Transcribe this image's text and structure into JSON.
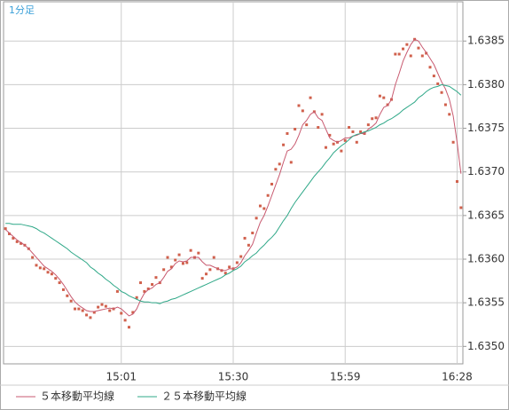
{
  "chart_data": {
    "type": "line",
    "title": "1分足",
    "categories": [
      null,
      null,
      null,
      null,
      null,
      null,
      null,
      null,
      null,
      null,
      null,
      null,
      null,
      null,
      null,
      null,
      null,
      null,
      null,
      null,
      null,
      null,
      null,
      null,
      null,
      null,
      null,
      null,
      null,
      null,
      "15:01",
      null,
      null,
      null,
      null,
      null,
      null,
      null,
      null,
      null,
      null,
      null,
      null,
      null,
      null,
      null,
      null,
      null,
      null,
      null,
      null,
      null,
      null,
      null,
      null,
      null,
      null,
      null,
      null,
      "15:30",
      null,
      null,
      null,
      null,
      null,
      null,
      null,
      null,
      null,
      null,
      null,
      null,
      null,
      null,
      null,
      null,
      null,
      null,
      null,
      null,
      null,
      null,
      null,
      null,
      null,
      null,
      null,
      null,
      "15:59",
      null,
      null,
      null,
      null,
      null,
      null,
      null,
      null,
      null,
      null,
      null,
      null,
      null,
      null,
      null,
      null,
      null,
      null,
      null,
      null,
      null,
      null,
      null,
      null,
      null,
      null,
      null,
      null,
      "16:28",
      null
    ],
    "series": [
      {
        "mode": "markers",
        "color": "#d0604c",
        "values": [
          1.63635,
          1.63629,
          1.63624,
          1.6362,
          1.63618,
          1.63616,
          1.63612,
          1.63602,
          1.63593,
          1.6359,
          1.63589,
          1.63585,
          1.63583,
          1.63578,
          1.63573,
          1.63565,
          1.63558,
          1.63552,
          1.63543,
          1.63543,
          1.63541,
          1.63536,
          1.63533,
          1.63539,
          1.63545,
          1.63548,
          1.63546,
          1.63541,
          1.63543,
          1.63563,
          1.63538,
          1.6353,
          1.63522,
          1.63539,
          1.63556,
          1.63573,
          1.63563,
          1.63566,
          1.63571,
          1.63579,
          1.63573,
          1.63588,
          1.63602,
          1.63591,
          1.63599,
          1.63605,
          1.63595,
          1.63596,
          1.6361,
          1.63602,
          1.63607,
          1.63578,
          1.63583,
          1.63588,
          1.63602,
          1.63589,
          1.63587,
          1.63584,
          1.63591,
          1.63589,
          1.63596,
          1.63603,
          1.63624,
          1.63616,
          1.6363,
          1.63647,
          1.63661,
          1.63658,
          1.63673,
          1.63686,
          1.63703,
          1.63709,
          1.63731,
          1.63744,
          1.63711,
          1.63749,
          1.63776,
          1.6377,
          1.63754,
          1.63785,
          1.63769,
          1.63751,
          1.63766,
          1.63728,
          1.63742,
          1.63732,
          1.63734,
          1.63724,
          1.63736,
          1.63751,
          1.63746,
          1.63734,
          1.63746,
          1.63744,
          1.63754,
          1.63761,
          1.63762,
          1.63787,
          1.63785,
          1.63777,
          1.63783,
          1.63835,
          1.63835,
          1.63841,
          1.63846,
          1.63833,
          1.63852,
          1.63842,
          1.63833,
          1.63836,
          1.6382,
          1.6381,
          1.63801,
          1.63791,
          1.63777,
          1.63766,
          1.63734,
          1.63689,
          1.63659
        ]
      },
      {
        "name": "５本移動平均線",
        "mode": "line",
        "color": "#c85a70",
        "values": [
          1.63634,
          1.6363,
          1.63626,
          1.63622,
          1.63619,
          1.63616,
          1.63612,
          1.63607,
          1.63602,
          1.63597,
          1.63592,
          1.63589,
          1.63586,
          1.63582,
          1.63577,
          1.63571,
          1.63564,
          1.63557,
          1.63551,
          1.63547,
          1.63544,
          1.63541,
          1.6354,
          1.6354,
          1.63541,
          1.63542,
          1.63543,
          1.63544,
          1.63543,
          1.63545,
          1.63543,
          1.63539,
          1.63535,
          1.63537,
          1.63543,
          1.63553,
          1.63561,
          1.63565,
          1.63567,
          1.63571,
          1.63573,
          1.63579,
          1.63586,
          1.63589,
          1.63595,
          1.63598,
          1.63597,
          1.63598,
          1.63602,
          1.63602,
          1.63602,
          1.63597,
          1.63593,
          1.63593,
          1.63591,
          1.63589,
          1.63587,
          1.63587,
          1.63589,
          1.63589,
          1.63591,
          1.63596,
          1.63604,
          1.6361,
          1.63617,
          1.6363,
          1.63642,
          1.6365,
          1.63661,
          1.63673,
          1.63685,
          1.63697,
          1.63711,
          1.63724,
          1.63726,
          1.63732,
          1.63742,
          1.63754,
          1.63759,
          1.63766,
          1.63769,
          1.63762,
          1.63759,
          1.63749,
          1.63739,
          1.63736,
          1.63734,
          1.63736,
          1.63739,
          1.63739,
          1.63741,
          1.63742,
          1.63744,
          1.63744,
          1.63749,
          1.63752,
          1.63756,
          1.63766,
          1.63774,
          1.63776,
          1.63783,
          1.638,
          1.63813,
          1.63827,
          1.63837,
          1.63846,
          1.63852,
          1.6385,
          1.63843,
          1.63837,
          1.6383,
          1.63823,
          1.63813,
          1.63803,
          1.63795,
          1.63783,
          1.63764,
          1.63734,
          1.63698
        ]
      },
      {
        "name": "２５本移動平均線",
        "mode": "line",
        "color": "#2fa888",
        "values": [
          1.63641,
          1.63641,
          1.6364,
          1.6364,
          1.6364,
          1.63639,
          1.63638,
          1.63637,
          1.63635,
          1.63632,
          1.6363,
          1.63627,
          1.63624,
          1.63621,
          1.63618,
          1.63615,
          1.63612,
          1.63608,
          1.63605,
          1.63602,
          1.63599,
          1.63596,
          1.63591,
          1.63588,
          1.63584,
          1.63581,
          1.63577,
          1.63574,
          1.6357,
          1.63567,
          1.63563,
          1.63561,
          1.63558,
          1.63556,
          1.63554,
          1.63552,
          1.63551,
          1.63551,
          1.6355,
          1.6355,
          1.63549,
          1.63551,
          1.63552,
          1.63554,
          1.63555,
          1.63557,
          1.63559,
          1.63561,
          1.63563,
          1.63565,
          1.63567,
          1.63569,
          1.63571,
          1.63573,
          1.63575,
          1.63577,
          1.63579,
          1.63582,
          1.63584,
          1.63587,
          1.63589,
          1.63592,
          1.63597,
          1.636,
          1.63604,
          1.63607,
          1.63612,
          1.63616,
          1.63621,
          1.63625,
          1.6363,
          1.63637,
          1.63644,
          1.6365,
          1.63658,
          1.63665,
          1.63671,
          1.63677,
          1.63683,
          1.63689,
          1.63695,
          1.637,
          1.63705,
          1.63711,
          1.63716,
          1.63722,
          1.63726,
          1.6373,
          1.63733,
          1.63737,
          1.63741,
          1.63743,
          1.63744,
          1.63746,
          1.63747,
          1.63749,
          1.63751,
          1.63754,
          1.63756,
          1.63759,
          1.63761,
          1.63764,
          1.63767,
          1.63771,
          1.63774,
          1.63777,
          1.6378,
          1.63785,
          1.63788,
          1.63792,
          1.63795,
          1.63797,
          1.63798,
          1.638,
          1.63799,
          1.63798,
          1.63795,
          1.63792,
          1.63788
        ]
      }
    ],
    "ylim": [
      1.6348,
      1.63895
    ],
    "yticks": [
      {
        "value": 1.635,
        "label": "1.6350"
      },
      {
        "value": 1.6355,
        "label": "1.6355"
      },
      {
        "value": 1.636,
        "label": "1.6360"
      },
      {
        "value": 1.6365,
        "label": "1.6365"
      },
      {
        "value": 1.637,
        "label": "1.6370"
      },
      {
        "value": 1.6375,
        "label": "1.6375"
      },
      {
        "value": 1.638,
        "label": "1.6380"
      },
      {
        "value": 1.6385,
        "label": "1.6385"
      }
    ],
    "grid": true
  }
}
